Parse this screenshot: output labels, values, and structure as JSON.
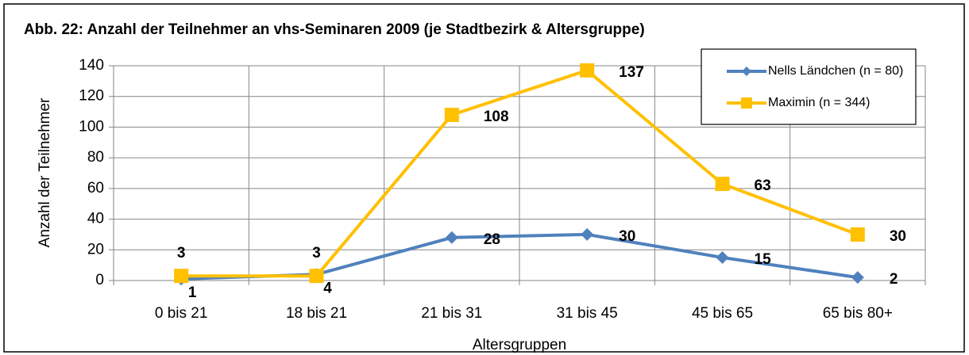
{
  "chart_data": {
    "type": "line",
    "title": "Abb. 22: Anzahl der Teilnehmer an vhs-Seminaren 2009 (je Stadtbezirk & Altersgruppe)",
    "y_label": "Anzahl der Teilnehmer",
    "x_label": "Altersgruppen",
    "categories": [
      "0 bis 21",
      "18 bis 21",
      "21 bis 31",
      "31 bis 45",
      "45 bis 65",
      "65 bis 80+"
    ],
    "series": [
      {
        "name": "Nells Ländchen (n = 80)",
        "color": "#4f81bd",
        "marker": "diamond",
        "values": [
          1,
          4,
          28,
          30,
          15,
          2
        ]
      },
      {
        "name": "Maximin (n = 344)",
        "color": "#ffc000",
        "marker": "square",
        "values": [
          3,
          3,
          108,
          137,
          63,
          30
        ]
      }
    ],
    "ylim": [
      0,
      140
    ],
    "yticks": [
      0,
      20,
      40,
      60,
      80,
      100,
      120,
      140
    ],
    "grid": true,
    "legend": "upper right"
  }
}
